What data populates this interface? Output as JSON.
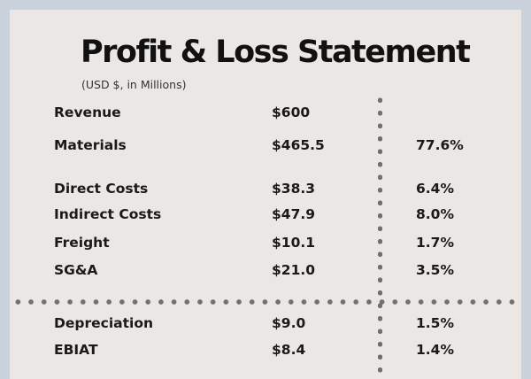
{
  "statement": {
    "title": "Profit & Loss Statement",
    "subtitle": "(USD $, in Millions)",
    "rows": [
      {
        "label": "Revenue",
        "amount": "$600",
        "pct": ""
      },
      {
        "label": "Materials",
        "amount": "$465.5",
        "pct": "77.6%"
      },
      {
        "label": "Direct Costs",
        "amount": "$38.3",
        "pct": "6.4%"
      },
      {
        "label": "Indirect Costs",
        "amount": "$47.9",
        "pct": "8.0%"
      },
      {
        "label": "Freight",
        "amount": "$10.1",
        "pct": "1.7%"
      },
      {
        "label": "SG&A",
        "amount": "$21.0",
        "pct": "3.5%"
      },
      {
        "label": "Depreciation",
        "amount": "$9.0",
        "pct": "1.5%"
      },
      {
        "label": "EBIAT",
        "amount": "$8.4",
        "pct": "1.4%"
      }
    ]
  },
  "colors": {
    "page_background": "#c9d2da",
    "card_background": "#ebe7e5",
    "text": "#1a1a1a",
    "dotted_divider": "#707070"
  }
}
